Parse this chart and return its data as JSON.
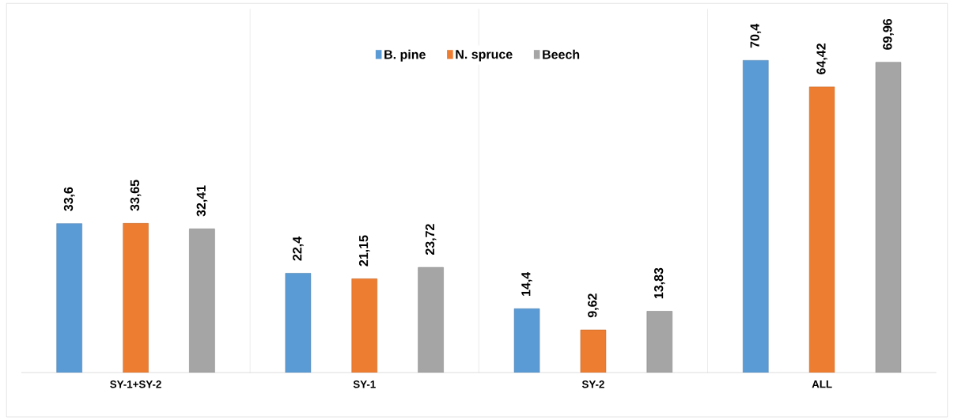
{
  "chart_data": {
    "type": "bar",
    "categories": [
      "SY-1+SY-2",
      "SY-1",
      "SY-2",
      "ALL"
    ],
    "series": [
      {
        "name": "B. pine",
        "color": "#5b9bd5",
        "values": [
          33.6,
          22.4,
          14.4,
          70.4
        ],
        "value_labels": [
          "33,6",
          "22,4",
          "14,4",
          "70,4"
        ]
      },
      {
        "name": "N. spruce",
        "color": "#ed7d31",
        "values": [
          33.65,
          21.15,
          9.62,
          64.42
        ],
        "value_labels": [
          "33,65",
          "21,15",
          "9,62",
          "64,42"
        ]
      },
      {
        "name": "Beech",
        "color": "#a5a5a5",
        "values": [
          32.41,
          23.72,
          13.83,
          69.96
        ],
        "value_labels": [
          "32,41",
          "23,72",
          "13,83",
          "69,96"
        ]
      }
    ],
    "ylim": [
      0,
      82
    ],
    "grid": "x",
    "legend": "top"
  }
}
